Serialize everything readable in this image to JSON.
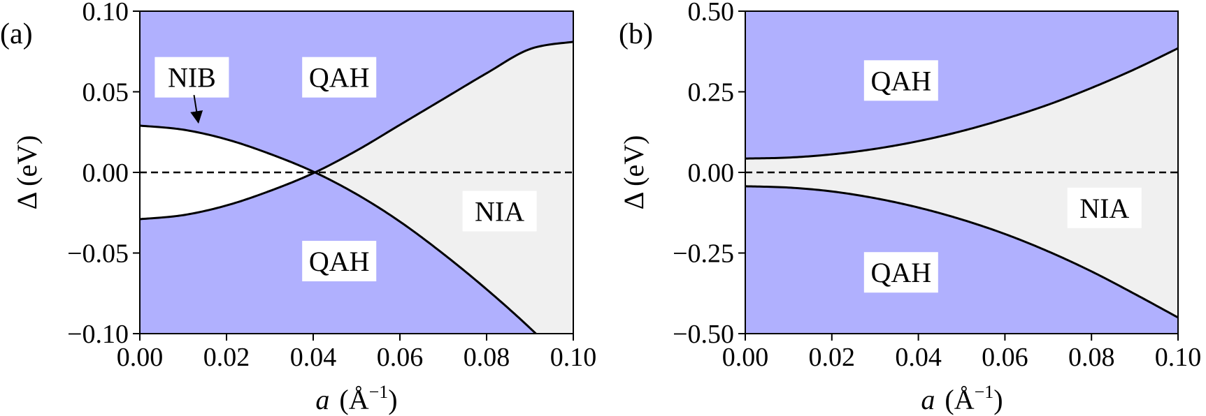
{
  "colors": {
    "qah_fill": "#b0b0fe",
    "nia_fill": "#f0f0f0",
    "nib_fill": "#ffffff",
    "curve": "#000000",
    "frame": "#000000",
    "label_box": "#ffffff"
  },
  "chart_data": [
    {
      "type": "area",
      "panel_label": "(a)",
      "xlabel": "a (Å⁻¹)",
      "xlabel_var": "a",
      "xlabel_unit_open": "(Å",
      "xlabel_unit_sup": "−1",
      "xlabel_unit_close": ")",
      "ylabel": "Δ (eV)",
      "xlim": [
        0.0,
        0.1
      ],
      "ylim": [
        -0.1,
        0.1
      ],
      "xticks": [
        "0.00",
        "0.02",
        "0.04",
        "0.06",
        "0.08",
        "0.10"
      ],
      "xtick_values": [
        0.0,
        0.02,
        0.04,
        0.06,
        0.08,
        0.1
      ],
      "yticks": [
        "0.10",
        "0.05",
        "0.00",
        "−0.05",
        "−0.10"
      ],
      "ytick_values": [
        0.1,
        0.05,
        0.0,
        -0.05,
        -0.1
      ],
      "grid": false,
      "series": [
        {
          "role": "upper-boundary",
          "x": [
            0,
            0.01,
            0.02,
            0.03,
            0.04,
            0.05,
            0.06,
            0.07,
            0.08,
            0.09,
            0.1
          ],
          "y": [
            0.029,
            0.0265,
            0.0205,
            0.0115,
            0.0005,
            -0.0135,
            -0.0305,
            -0.0505,
            -0.0725,
            -0.0965,
            -0.123
          ]
        },
        {
          "role": "lower-boundary",
          "x": [
            0,
            0.01,
            0.02,
            0.03,
            0.04,
            0.05,
            0.06,
            0.07,
            0.08,
            0.09,
            0.1
          ],
          "y": [
            -0.029,
            -0.0265,
            -0.0205,
            -0.0115,
            -0.0005,
            0.0135,
            0.0295,
            0.0455,
            0.0615,
            0.0765,
            0.081
          ]
        }
      ],
      "reference_line": {
        "y": 0.0,
        "style": "dashed"
      },
      "regions": [
        {
          "name": "QAH",
          "label": "QAH",
          "x": 0.046,
          "y": 0.059
        },
        {
          "name": "QAH",
          "label": "QAH",
          "x": 0.046,
          "y": -0.055
        },
        {
          "name": "NIA",
          "label": "NIA",
          "x": 0.083,
          "y": -0.024
        },
        {
          "name": "NIB",
          "label": "NIB",
          "x": 0.012,
          "y": 0.059
        }
      ],
      "annotations": [
        {
          "text": "NIB",
          "arrow_from": [
            0.0125,
            0.048
          ],
          "arrow_to": [
            0.0135,
            0.031
          ]
        }
      ]
    },
    {
      "type": "area",
      "panel_label": "(b)",
      "xlabel": "a (Å⁻¹)",
      "xlabel_var": "a",
      "xlabel_unit_open": "(Å",
      "xlabel_unit_sup": "−1",
      "xlabel_unit_close": ")",
      "ylabel": "Δ (eV)",
      "xlim": [
        0.0,
        0.1
      ],
      "ylim": [
        -0.5,
        0.5
      ],
      "xticks": [
        "0.00",
        "0.02",
        "0.04",
        "0.06",
        "0.08",
        "0.10"
      ],
      "xtick_values": [
        0.0,
        0.02,
        0.04,
        0.06,
        0.08,
        0.1
      ],
      "yticks": [
        "0.50",
        "0.25",
        "0.00",
        "−0.25",
        "−0.50"
      ],
      "ytick_values": [
        0.5,
        0.25,
        0.0,
        -0.25,
        -0.5
      ],
      "grid": false,
      "series": [
        {
          "role": "upper-boundary",
          "x": [
            0,
            0.01,
            0.02,
            0.03,
            0.04,
            0.05,
            0.06,
            0.07,
            0.08,
            0.09,
            0.1
          ],
          "y": [
            0.043,
            0.046,
            0.056,
            0.073,
            0.097,
            0.128,
            0.166,
            0.21,
            0.262,
            0.32,
            0.385
          ]
        },
        {
          "role": "lower-boundary",
          "x": [
            0,
            0.01,
            0.02,
            0.03,
            0.04,
            0.05,
            0.06,
            0.07,
            0.08,
            0.09,
            0.1
          ],
          "y": [
            -0.043,
            -0.047,
            -0.059,
            -0.08,
            -0.109,
            -0.146,
            -0.191,
            -0.245,
            -0.307,
            -0.377,
            -0.45
          ]
        }
      ],
      "reference_line": {
        "y": 0.0,
        "style": "dashed"
      },
      "regions": [
        {
          "name": "QAH",
          "label": "QAH",
          "x": 0.036,
          "y": 0.285
        },
        {
          "name": "QAH",
          "label": "QAH",
          "x": 0.036,
          "y": -0.31
        },
        {
          "name": "NIA",
          "label": "NIA",
          "x": 0.083,
          "y": -0.11
        }
      ]
    }
  ]
}
